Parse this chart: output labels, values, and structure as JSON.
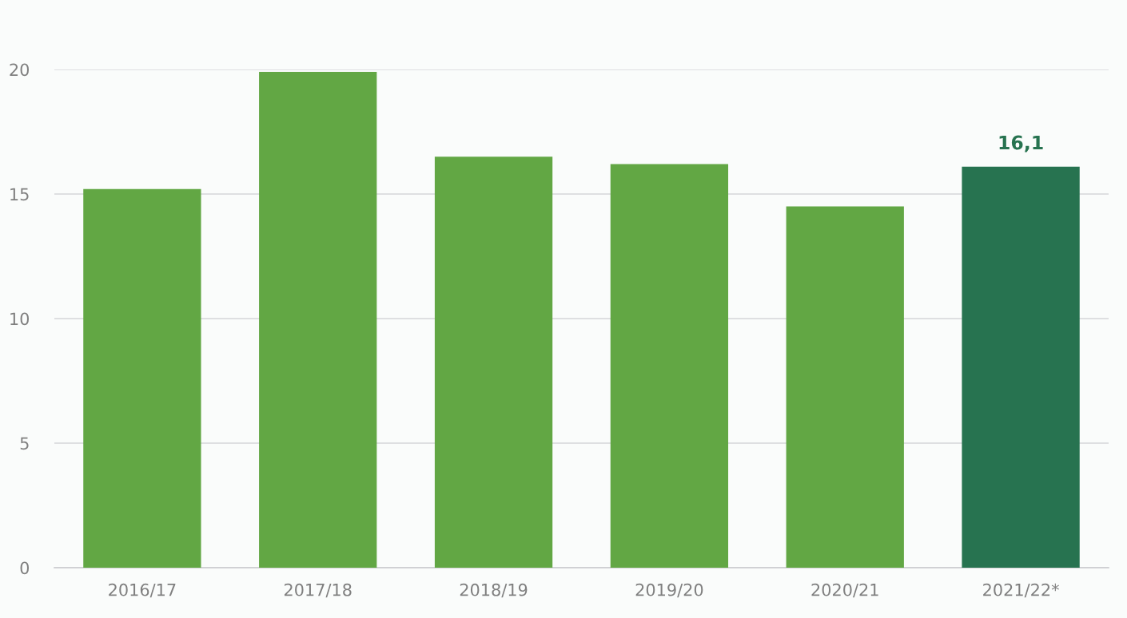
{
  "chart_data": {
    "type": "bar",
    "categories": [
      "2016/17",
      "2017/18",
      "2018/19",
      "2019/20",
      "2020/21",
      "2021/22*"
    ],
    "values": [
      15.2,
      19.9,
      16.5,
      16.2,
      14.5,
      16.1
    ],
    "colors": [
      "#62a744",
      "#62a744",
      "#62a744",
      "#62a744",
      "#62a744",
      "#277350"
    ],
    "value_labels": [
      null,
      null,
      null,
      null,
      null,
      "16,1"
    ],
    "ylim": [
      0,
      20
    ],
    "yticks": [
      0,
      5,
      10,
      15,
      20
    ],
    "grid": "y",
    "legend": false
  }
}
